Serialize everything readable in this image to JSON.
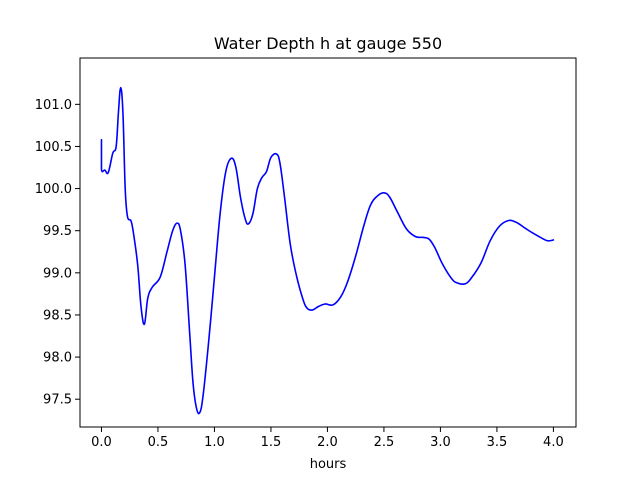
{
  "chart_data": {
    "type": "line",
    "title": "Water Depth h at gauge 550",
    "xlabel": "hours",
    "ylabel": "",
    "xlim": [
      -0.19,
      4.2
    ],
    "ylim": [
      97.17,
      101.55
    ],
    "xticks": [
      0.0,
      0.5,
      1.0,
      1.5,
      2.0,
      2.5,
      3.0,
      3.5,
      4.0
    ],
    "xtick_labels": [
      "0.0",
      "0.5",
      "1.0",
      "1.5",
      "2.0",
      "2.5",
      "3.0",
      "3.5",
      "4.0"
    ],
    "yticks": [
      97.5,
      98.0,
      98.5,
      99.0,
      99.5,
      100.0,
      100.5,
      101.0
    ],
    "ytick_labels": [
      "97.5",
      "98.0",
      "98.5",
      "99.0",
      "99.5",
      "100.0",
      "100.5",
      "101.0"
    ],
    "grid": false,
    "legend": "none",
    "series": [
      {
        "color": "#0000ff",
        "points": [
          [
            0.0,
            100.58
          ],
          [
            0.0,
            100.23
          ],
          [
            0.03,
            100.22
          ],
          [
            0.06,
            100.19
          ],
          [
            0.1,
            100.42
          ],
          [
            0.13,
            100.5
          ],
          [
            0.15,
            100.9
          ],
          [
            0.17,
            101.2
          ],
          [
            0.19,
            100.9
          ],
          [
            0.21,
            100.0
          ],
          [
            0.23,
            99.67
          ],
          [
            0.26,
            99.62
          ],
          [
            0.28,
            99.5
          ],
          [
            0.32,
            99.1
          ],
          [
            0.35,
            98.6
          ],
          [
            0.38,
            98.39
          ],
          [
            0.41,
            98.7
          ],
          [
            0.45,
            98.83
          ],
          [
            0.52,
            98.95
          ],
          [
            0.58,
            99.25
          ],
          [
            0.63,
            99.5
          ],
          [
            0.67,
            99.59
          ],
          [
            0.7,
            99.5
          ],
          [
            0.74,
            99.1
          ],
          [
            0.78,
            98.3
          ],
          [
            0.81,
            97.7
          ],
          [
            0.84,
            97.4
          ],
          [
            0.87,
            97.34
          ],
          [
            0.9,
            97.55
          ],
          [
            0.95,
            98.2
          ],
          [
            1.0,
            98.95
          ],
          [
            1.05,
            99.7
          ],
          [
            1.1,
            100.2
          ],
          [
            1.15,
            100.36
          ],
          [
            1.19,
            100.25
          ],
          [
            1.23,
            99.9
          ],
          [
            1.27,
            99.65
          ],
          [
            1.3,
            99.58
          ],
          [
            1.34,
            99.7
          ],
          [
            1.38,
            100.0
          ],
          [
            1.42,
            100.13
          ],
          [
            1.46,
            100.2
          ],
          [
            1.5,
            100.37
          ],
          [
            1.55,
            100.41
          ],
          [
            1.58,
            100.3
          ],
          [
            1.62,
            99.9
          ],
          [
            1.67,
            99.35
          ],
          [
            1.72,
            99.0
          ],
          [
            1.78,
            98.7
          ],
          [
            1.82,
            98.58
          ],
          [
            1.87,
            98.56
          ],
          [
            1.92,
            98.6
          ],
          [
            1.98,
            98.63
          ],
          [
            2.05,
            98.62
          ],
          [
            2.12,
            98.72
          ],
          [
            2.18,
            98.9
          ],
          [
            2.25,
            99.2
          ],
          [
            2.32,
            99.55
          ],
          [
            2.38,
            99.8
          ],
          [
            2.44,
            99.91
          ],
          [
            2.5,
            99.95
          ],
          [
            2.55,
            99.9
          ],
          [
            2.62,
            99.72
          ],
          [
            2.7,
            99.52
          ],
          [
            2.78,
            99.43
          ],
          [
            2.85,
            99.42
          ],
          [
            2.9,
            99.4
          ],
          [
            2.95,
            99.3
          ],
          [
            3.02,
            99.1
          ],
          [
            3.1,
            98.93
          ],
          [
            3.15,
            98.88
          ],
          [
            3.22,
            98.87
          ],
          [
            3.28,
            98.95
          ],
          [
            3.36,
            99.12
          ],
          [
            3.44,
            99.38
          ],
          [
            3.52,
            99.55
          ],
          [
            3.6,
            99.62
          ],
          [
            3.67,
            99.6
          ],
          [
            3.75,
            99.53
          ],
          [
            3.82,
            99.47
          ],
          [
            3.9,
            99.41
          ],
          [
            3.95,
            99.38
          ],
          [
            4.0,
            99.39
          ]
        ]
      }
    ]
  }
}
